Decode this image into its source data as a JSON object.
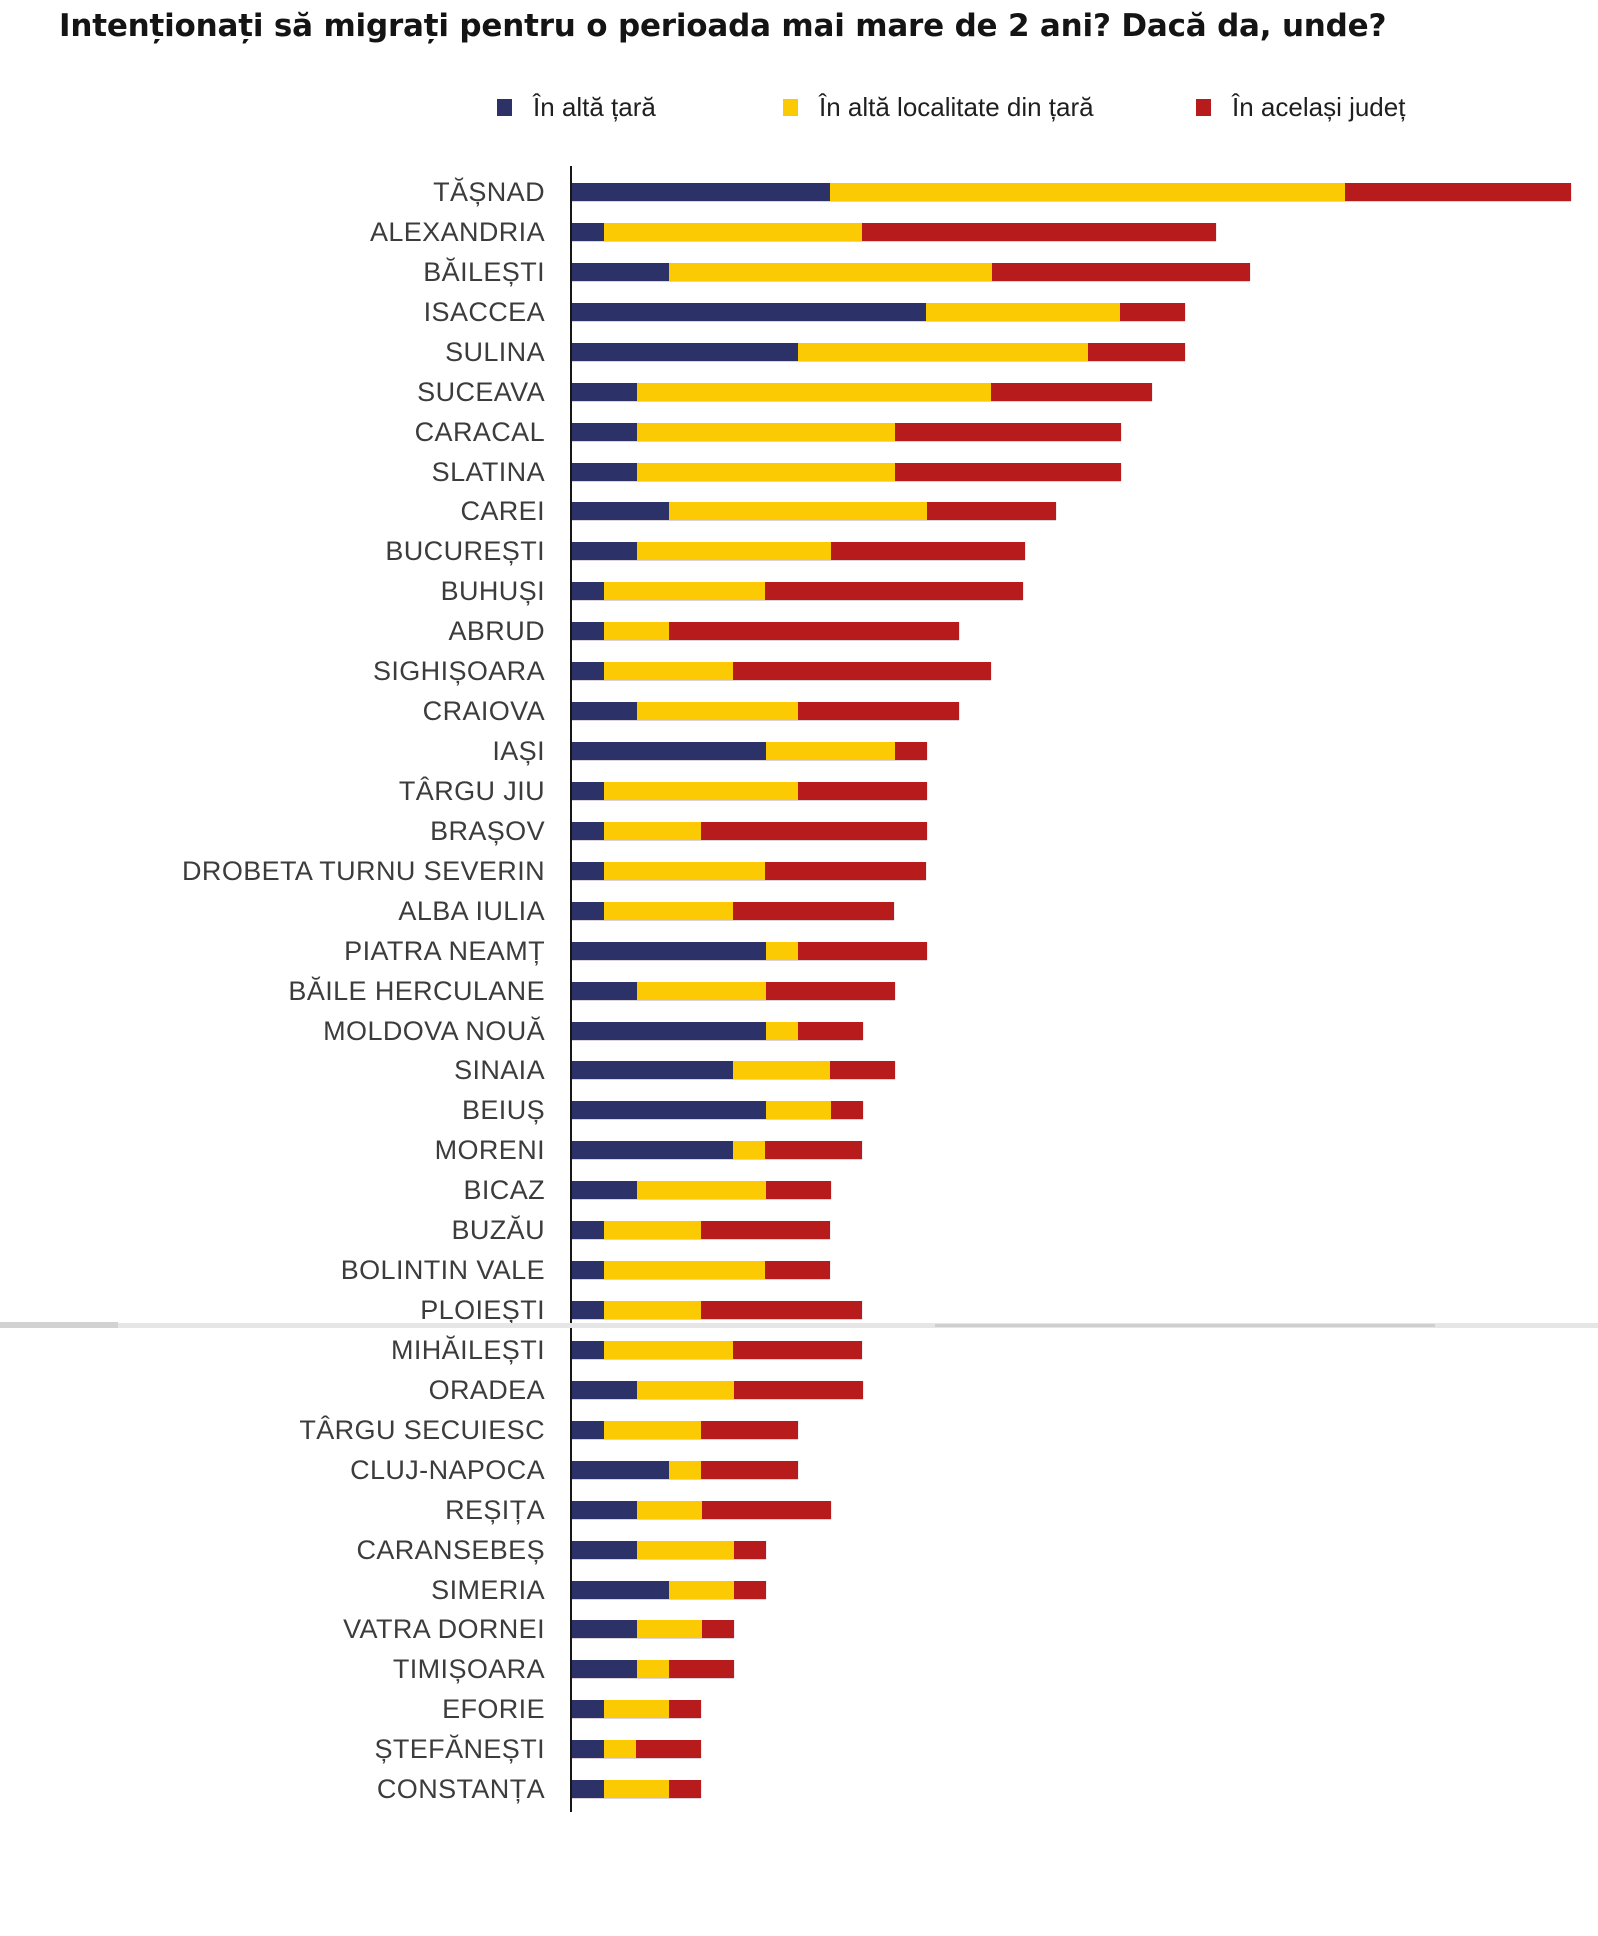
{
  "title": "Intenționați să migrați pentru o perioada mai mare de 2 ani? Dacă da, unde?",
  "legend": {
    "items": [
      {
        "key": "tara",
        "label": "În altă țară",
        "color": "#2c3268"
      },
      {
        "key": "localitate",
        "label": "În altă localitate din țară",
        "color": "#fbca02"
      },
      {
        "key": "judet",
        "label": "În același județ",
        "color": "#b71b1b"
      }
    ]
  },
  "chart_data": {
    "type": "bar",
    "orientation": "horizontal",
    "stacked": true,
    "title": "Intenționați să migrați pentru o perioada mai mare de 2 ani? Dacă da, unde?",
    "xlabel": "",
    "ylabel": "",
    "xlim": [
      0,
      100
    ],
    "x_axis_visible": false,
    "grid": false,
    "legend_position": "top",
    "value_unit": "percent (estimated from bar lengths; increments of ~3.125)",
    "categories": [
      "TĂȘNAD",
      "ALEXANDRIA",
      "BĂILEȘTI",
      "ISACCEA",
      "SULINA",
      "SUCEAVA",
      "CARACAL",
      "SLATINA",
      "CAREI",
      "BUCUREȘTI",
      "BUHUȘI",
      "ABRUD",
      "SIGHIȘOARA",
      "CRAIOVA",
      "IAȘI",
      "TÂRGU JIU",
      "BRAȘOV",
      "DROBETA TURNU SEVERIN",
      "ALBA IULIA",
      "PIATRA NEAMȚ",
      "BĂILE HERCULANE",
      "MOLDOVA NOUĂ",
      "SINAIA",
      "BEIUȘ",
      "MORENI",
      "BICAZ",
      "BUZĂU",
      "BOLINTIN VALE",
      "PLOIEȘTI",
      "MIHĂILEȘTI",
      "ORADEA",
      "TÂRGU SECUIESC",
      "CLUJ-NAPOCA",
      "REȘIȚA",
      "CARANSEBEȘ",
      "SIMERIA",
      "VATRA DORNEI",
      "TIMIȘOARA",
      "EFORIE",
      "ȘTEFĂNEȘTI",
      "CONSTANȚA"
    ],
    "series": [
      {
        "key": "tara",
        "name": "În altă țară",
        "color": "#2c3268",
        "values": [
          25.0,
          3.1,
          9.4,
          34.4,
          21.9,
          6.3,
          6.3,
          6.3,
          9.4,
          6.3,
          3.1,
          3.1,
          3.1,
          6.3,
          18.8,
          3.1,
          3.1,
          3.1,
          3.1,
          18.8,
          6.3,
          18.8,
          15.6,
          18.8,
          15.6,
          6.3,
          3.1,
          3.1,
          3.1,
          3.1,
          6.3,
          3.1,
          9.4,
          6.3,
          6.3,
          9.4,
          6.3,
          6.3,
          3.1,
          3.1,
          3.1
        ]
      },
      {
        "key": "localitate",
        "name": "În altă localitate din țară",
        "color": "#fbca02",
        "values": [
          50.0,
          25.0,
          31.3,
          18.8,
          28.1,
          34.4,
          25.0,
          25.0,
          25.0,
          18.8,
          15.6,
          6.3,
          12.5,
          15.6,
          12.5,
          18.8,
          9.4,
          15.6,
          12.5,
          3.1,
          12.5,
          3.1,
          9.4,
          6.3,
          3.1,
          12.5,
          9.4,
          15.6,
          9.4,
          12.5,
          9.4,
          9.4,
          3.1,
          6.3,
          9.4,
          6.3,
          6.3,
          3.1,
          6.3,
          3.1,
          6.3
        ]
      },
      {
        "key": "judet",
        "name": "În același județ",
        "color": "#b71b1b",
        "values": [
          21.9,
          34.4,
          25.0,
          6.3,
          9.4,
          15.6,
          21.9,
          21.9,
          12.5,
          18.8,
          25.0,
          28.1,
          25.0,
          15.6,
          3.1,
          12.5,
          21.9,
          15.6,
          15.6,
          12.5,
          12.5,
          6.3,
          6.3,
          3.1,
          9.4,
          6.3,
          12.5,
          6.3,
          15.6,
          12.5,
          12.5,
          9.4,
          9.4,
          12.5,
          3.1,
          3.1,
          3.1,
          6.3,
          3.1,
          6.3,
          3.1
        ]
      }
    ]
  }
}
